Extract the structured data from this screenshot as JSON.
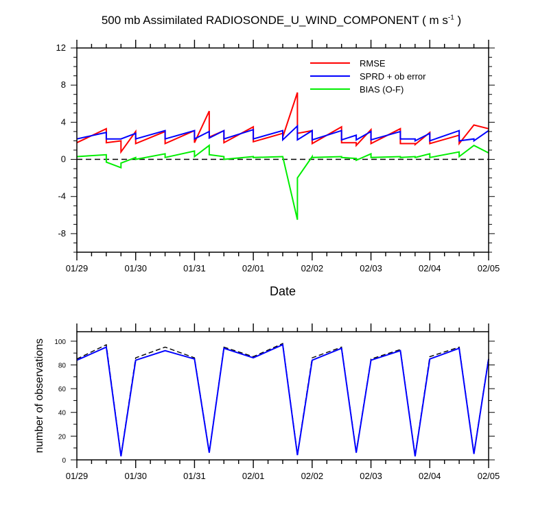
{
  "figure": {
    "title_main": "500 mb Assimilated RADIOSONDE_U_WIND_COMPONENT ( m s",
    "title_exp": "-1",
    "title_close": " )"
  },
  "chart_data": [
    {
      "type": "line",
      "title": "500 mb Assimilated RADIOSONDE_U_WIND_COMPONENT ( m s-1 )",
      "xlabel": "Date",
      "ylabel": "",
      "xlim": [
        0,
        168
      ],
      "ylim": [
        -10,
        12
      ],
      "yticks": [
        -8,
        -4,
        0,
        4,
        8,
        12
      ],
      "yminor_step": 1,
      "xticks": [
        {
          "x": 0,
          "label": "01/29"
        },
        {
          "x": 24,
          "label": "01/30"
        },
        {
          "x": 48,
          "label": "01/31"
        },
        {
          "x": 72,
          "label": "02/01"
        },
        {
          "x": 96,
          "label": "02/02"
        },
        {
          "x": 120,
          "label": "02/03"
        },
        {
          "x": 144,
          "label": "02/04"
        },
        {
          "x": 168,
          "label": "02/05"
        }
      ],
      "x_unit": "hours since 01/29 00Z",
      "legend_position": "top-right",
      "zero_line": true,
      "series": [
        {
          "name": "RMSE",
          "color": "#ff0000",
          "x": [
            0,
            12,
            12,
            18,
            18,
            24,
            24,
            36,
            36,
            48,
            48,
            54,
            54,
            60,
            60,
            72,
            72,
            84,
            84,
            90,
            90,
            96,
            96,
            108,
            108,
            114,
            114,
            120,
            120,
            132,
            132,
            138,
            138,
            144,
            144,
            156,
            156,
            162,
            162,
            168
          ],
          "y": [
            1.8,
            3.3,
            1.8,
            2.0,
            0.8,
            3.0,
            1.7,
            3.0,
            1.7,
            3.1,
            1.8,
            5.2,
            2.4,
            3.1,
            1.8,
            3.5,
            1.9,
            2.8,
            2.4,
            7.2,
            2.8,
            3.1,
            1.7,
            3.5,
            1.8,
            1.8,
            1.5,
            3.2,
            1.7,
            3.3,
            1.7,
            1.7,
            1.6,
            2.9,
            1.7,
            2.6,
            1.7,
            3.7,
            3.7,
            3.3
          ]
        },
        {
          "name": "SPRD + ob error",
          "color": "#0000ff",
          "x": [
            0,
            12,
            12,
            18,
            18,
            24,
            24,
            36,
            36,
            48,
            48,
            54,
            54,
            60,
            60,
            72,
            72,
            84,
            84,
            90,
            90,
            96,
            96,
            108,
            108,
            114,
            114,
            120,
            120,
            132,
            132,
            138,
            138,
            144,
            144,
            156,
            156,
            162,
            162,
            168
          ],
          "y": [
            2.2,
            2.9,
            2.2,
            2.2,
            2.2,
            2.8,
            2.2,
            3.1,
            2.2,
            3.1,
            2.2,
            3.0,
            2.3,
            3.1,
            2.2,
            3.2,
            2.2,
            3.1,
            2.1,
            3.6,
            2.1,
            3.1,
            2.1,
            3.1,
            2.1,
            2.6,
            2.1,
            3.0,
            2.1,
            3.0,
            2.2,
            2.2,
            2.0,
            2.8,
            2.0,
            3.1,
            2.0,
            2.2,
            2.0,
            3.1
          ]
        },
        {
          "name": "BIAS (O-F)",
          "color": "#00ee00",
          "x": [
            0,
            12,
            12,
            18,
            18,
            24,
            24,
            36,
            36,
            48,
            48,
            54,
            54,
            60,
            60,
            72,
            72,
            84,
            84,
            90,
            90,
            96,
            96,
            108,
            108,
            114,
            114,
            120,
            120,
            132,
            132,
            138,
            138,
            144,
            144,
            156,
            156,
            162,
            162,
            168
          ],
          "y": [
            0.3,
            0.5,
            -0.3,
            -0.9,
            -0.4,
            0.2,
            0.0,
            0.6,
            0.2,
            0.9,
            0.3,
            1.5,
            0.5,
            0.3,
            0.0,
            0.3,
            0.2,
            0.3,
            0.3,
            -6.5,
            -2.0,
            0.3,
            0.2,
            0.3,
            0.2,
            0.1,
            -0.1,
            0.6,
            0.2,
            0.3,
            0.2,
            0.3,
            0.2,
            0.6,
            0.2,
            0.8,
            0.3,
            1.5,
            1.5,
            0.7
          ]
        }
      ]
    },
    {
      "type": "line",
      "title": "",
      "xlabel": "",
      "ylabel": "number of observations",
      "xlim": [
        0,
        168
      ],
      "ylim": [
        0,
        108
      ],
      "yticks": [
        0,
        20,
        40,
        60,
        80,
        100
      ],
      "yminor_step": 10,
      "xticks": [
        {
          "x": 0,
          "label": "01/29"
        },
        {
          "x": 24,
          "label": "01/30"
        },
        {
          "x": 48,
          "label": "01/31"
        },
        {
          "x": 72,
          "label": "02/01"
        },
        {
          "x": 96,
          "label": "02/02"
        },
        {
          "x": 120,
          "label": "02/03"
        },
        {
          "x": 144,
          "label": "02/04"
        },
        {
          "x": 168,
          "label": "02/05"
        }
      ],
      "series": [
        {
          "name": "",
          "color": "#000000",
          "dash": true,
          "x": [
            0,
            12,
            18,
            24,
            36,
            48,
            54,
            60,
            72,
            84,
            90,
            96,
            108,
            114,
            120,
            132,
            138,
            144,
            156,
            162,
            168
          ],
          "y": [
            85,
            97,
            4,
            86,
            95,
            86,
            7,
            95,
            87,
            98,
            5,
            86,
            95,
            7,
            85,
            93,
            4,
            87,
            95,
            6,
            86
          ]
        },
        {
          "name": "",
          "color": "#0000ff",
          "dash": false,
          "x": [
            0,
            12,
            18,
            24,
            36,
            48,
            54,
            60,
            72,
            84,
            90,
            96,
            108,
            114,
            120,
            132,
            138,
            144,
            156,
            162,
            168
          ],
          "y": [
            84,
            95,
            3,
            84,
            92,
            85,
            6,
            94,
            86,
            97,
            4,
            84,
            94,
            6,
            84,
            92,
            3,
            85,
            94,
            5,
            85
          ]
        }
      ]
    }
  ]
}
